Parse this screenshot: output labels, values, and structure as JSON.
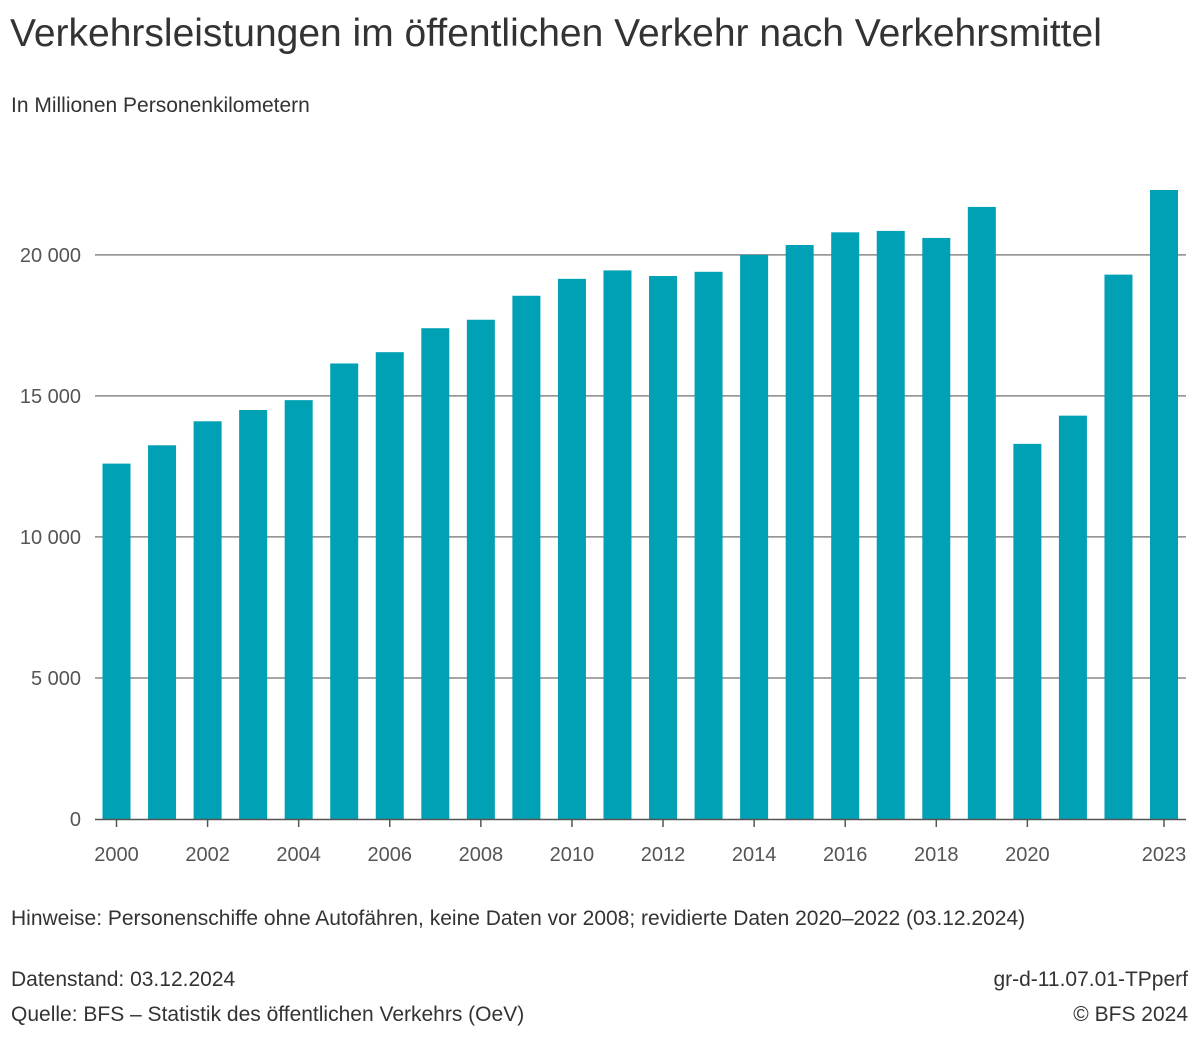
{
  "chart_data": {
    "type": "bar",
    "title": "Verkehrsleistungen im öffentlichen Verkehr nach Verkehrsmittel",
    "subtitle": "In Millionen Personenkilometern",
    "xlabel": "",
    "ylabel": "",
    "categories": [
      "2000",
      "2001",
      "2002",
      "2003",
      "2004",
      "2005",
      "2006",
      "2007",
      "2008",
      "2009",
      "2010",
      "2011",
      "2012",
      "2013",
      "2014",
      "2015",
      "2016",
      "2017",
      "2018",
      "2019",
      "2020",
      "2021",
      "2022",
      "2023"
    ],
    "values": [
      12600,
      13250,
      14100,
      14500,
      14850,
      16150,
      16550,
      17400,
      17700,
      18550,
      19150,
      19450,
      19250,
      19400,
      20000,
      20350,
      20800,
      20850,
      20600,
      21700,
      13300,
      14300,
      19300,
      22300
    ],
    "x_tick_labels": [
      "2000",
      "",
      "2002",
      "",
      "2004",
      "",
      "2006",
      "",
      "2008",
      "",
      "2010",
      "",
      "2012",
      "",
      "2014",
      "",
      "2016",
      "",
      "2018",
      "",
      "2020",
      "",
      "",
      "2023"
    ],
    "y_ticks": [
      0,
      5000,
      10000,
      15000,
      20000
    ],
    "y_tick_labels": [
      "0",
      "5 000",
      "10 000",
      "15 000",
      "20 000"
    ],
    "ylim": [
      0,
      22300
    ],
    "grid": true,
    "bar_color": "#00a1b5",
    "grid_color": "#888888"
  },
  "notes": "Hinweise: Personenschiffe ohne Autofähren, keine Daten vor 2008; revidierte Daten 2020–2022 (03.12.2024)",
  "footer": {
    "datenstand": "Datenstand: 03.12.2024",
    "quelle": "Quelle: BFS – Statistik des öffentlichen Verkehrs (OeV)",
    "code": "gr-d-11.07.01-TPperf",
    "copyright": "© BFS 2024"
  }
}
